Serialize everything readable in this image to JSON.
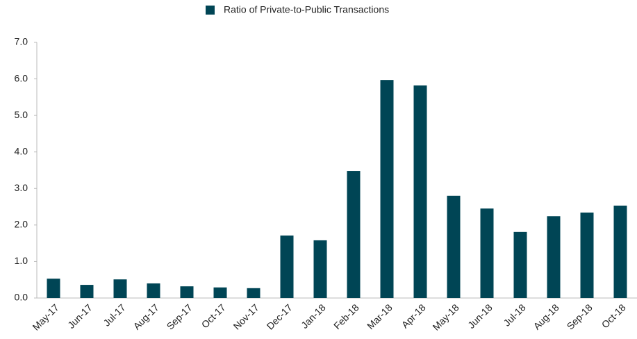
{
  "chart_data": {
    "type": "bar",
    "categories": [
      "May-17",
      "Jun-17",
      "Jul-17",
      "Aug-17",
      "Sep-17",
      "Oct-17",
      "Nov-17",
      "Dec-17",
      "Jan-18",
      "Feb-18",
      "Mar-18",
      "Apr-18",
      "May-18",
      "Jun-18",
      "Jul-18",
      "Aug-18",
      "Sep-18",
      "Oct-18"
    ],
    "series": [
      {
        "name": "Ratio of Private-to-Public Transactions",
        "color": "#004555",
        "values": [
          0.53,
          0.36,
          0.51,
          0.4,
          0.32,
          0.29,
          0.27,
          1.71,
          1.58,
          3.48,
          5.97,
          5.82,
          2.8,
          2.45,
          1.81,
          2.24,
          2.34,
          2.53
        ]
      }
    ],
    "ylim": [
      0,
      7
    ],
    "yticks": [
      {
        "value": 0,
        "label": "0.0"
      },
      {
        "value": 1,
        "label": "1.0"
      },
      {
        "value": 2,
        "label": "2.0"
      },
      {
        "value": 3,
        "label": "3.0"
      },
      {
        "value": 4,
        "label": "4.0"
      },
      {
        "value": 5,
        "label": "5.0"
      },
      {
        "value": 6,
        "label": "6.0"
      },
      {
        "value": 7,
        "label": "7.0"
      }
    ],
    "grid": false,
    "legend": "top"
  }
}
